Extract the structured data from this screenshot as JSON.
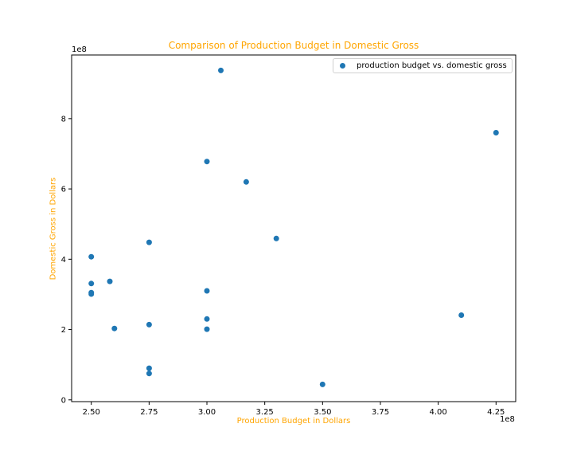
{
  "chart_data": {
    "type": "scatter",
    "title": "Comparison of Production Budget in Domestic Gross",
    "xlabel": "Production Budget in Dollars",
    "ylabel": "Domestic Gross in Dollars",
    "x_offset_label": "1e8",
    "y_offset_label": "1e8",
    "xlim": [
      2.415,
      4.335
    ],
    "ylim": [
      -0.05,
      9.81
    ],
    "x_ticks": [
      2.5,
      2.75,
      3.0,
      3.25,
      3.5,
      3.75,
      4.0,
      4.25
    ],
    "x_tick_labels": [
      "2.50",
      "2.75",
      "3.00",
      "3.25",
      "3.50",
      "3.75",
      "4.00",
      "4.25"
    ],
    "y_ticks": [
      0,
      2,
      4,
      6,
      8
    ],
    "y_tick_labels": [
      "0",
      "2",
      "4",
      "6",
      "8"
    ],
    "grid": false,
    "legend_position": "top-right",
    "series": [
      {
        "name": "production budget vs. domestic gross",
        "color": "#1f77b4",
        "points": [
          [
            2.5,
            4.07
          ],
          [
            2.5,
            3.31
          ],
          [
            2.5,
            3.05
          ],
          [
            2.5,
            3.01
          ],
          [
            2.58,
            3.37
          ],
          [
            2.6,
            2.03
          ],
          [
            2.75,
            4.48
          ],
          [
            2.75,
            2.14
          ],
          [
            2.75,
            0.9
          ],
          [
            2.75,
            0.75
          ],
          [
            3.0,
            6.78
          ],
          [
            3.0,
            3.1
          ],
          [
            3.0,
            2.3
          ],
          [
            3.0,
            2.01
          ],
          [
            3.06,
            9.37
          ],
          [
            3.17,
            6.2
          ],
          [
            3.3,
            4.59
          ],
          [
            3.5,
            0.44
          ],
          [
            4.1,
            2.41
          ],
          [
            4.25,
            7.6
          ]
        ]
      }
    ]
  }
}
